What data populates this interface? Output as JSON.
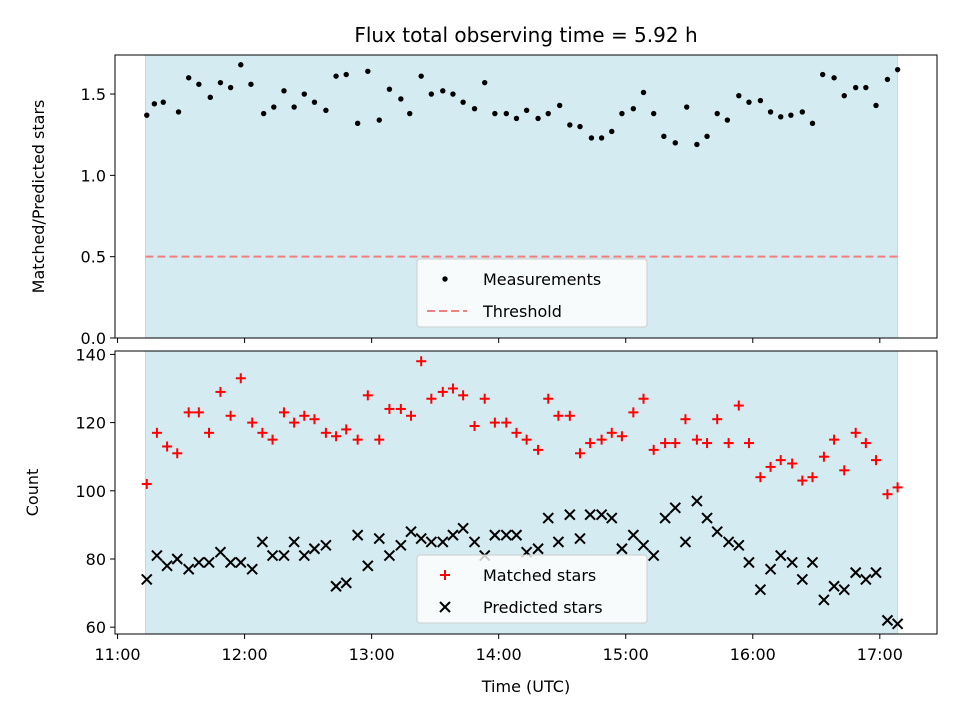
{
  "chart_data": {
    "title": "Flux total observing time = 5.92 h",
    "xlabel": "Time (UTC)",
    "x_tick_labels": [
      "11:00",
      "12:00",
      "13:00",
      "14:00",
      "15:00",
      "16:00",
      "17:00"
    ],
    "x_tick_hours": [
      11,
      12,
      13,
      14,
      15,
      16,
      17
    ],
    "xlim": [
      10.98,
      17.45
    ],
    "observing_span": [
      11.22,
      17.14
    ],
    "shade_color": "#d4ebf1",
    "panels": [
      {
        "type": "scatter",
        "ylabel": "Matched/Predicted stars",
        "ylim": [
          0,
          1.74
        ],
        "yticks": [
          0.0,
          0.5,
          1.0,
          1.5
        ],
        "ytick_labels": [
          "0.0",
          "0.5",
          "1.0",
          "1.5"
        ],
        "legend_position": "lower center",
        "series": [
          {
            "name": "Measurements",
            "color": "#000000",
            "marker": "dot",
            "x": [
              11.23,
              11.29,
              11.36,
              11.48,
              11.56,
              11.64,
              11.73,
              11.81,
              11.89,
              11.97,
              12.05,
              12.15,
              12.23,
              12.31,
              12.39,
              12.47,
              12.55,
              12.64,
              12.72,
              12.8,
              12.89,
              12.97,
              13.06,
              13.14,
              13.23,
              13.3,
              13.39,
              13.47,
              13.56,
              13.64,
              13.72,
              13.81,
              13.89,
              13.97,
              14.06,
              14.14,
              14.22,
              14.31,
              14.39,
              14.48,
              14.56,
              14.64,
              14.73,
              14.81,
              14.89,
              14.97,
              15.06,
              15.14,
              15.22,
              15.3,
              15.39,
              15.48,
              15.56,
              15.64,
              15.72,
              15.8,
              15.89,
              15.97,
              16.06,
              16.14,
              16.22,
              16.3,
              16.39,
              16.47,
              16.55,
              16.64,
              16.72,
              16.81,
              16.89,
              16.97,
              17.06,
              17.14
            ],
            "y": [
              1.37,
              1.44,
              1.45,
              1.39,
              1.6,
              1.56,
              1.48,
              1.57,
              1.54,
              1.68,
              1.56,
              1.38,
              1.42,
              1.52,
              1.42,
              1.5,
              1.45,
              1.4,
              1.61,
              1.62,
              1.32,
              1.64,
              1.34,
              1.53,
              1.47,
              1.38,
              1.61,
              1.5,
              1.52,
              1.5,
              1.45,
              1.41,
              1.57,
              1.38,
              1.38,
              1.35,
              1.4,
              1.35,
              1.38,
              1.43,
              1.31,
              1.3,
              1.23,
              1.23,
              1.27,
              1.38,
              1.41,
              1.51,
              1.38,
              1.24,
              1.2,
              1.42,
              1.19,
              1.24,
              1.38,
              1.34,
              1.49,
              1.45,
              1.46,
              1.39,
              1.36,
              1.37,
              1.39,
              1.32,
              1.62,
              1.6,
              1.49,
              1.54,
              1.54,
              1.43,
              1.59,
              1.65
            ]
          },
          {
            "name": "Threshold",
            "type": "hline",
            "y": 0.5,
            "color": "#f08080",
            "linestyle": "dashed"
          }
        ]
      },
      {
        "type": "scatter",
        "ylabel": "Count",
        "ylim": [
          58,
          141
        ],
        "yticks": [
          60,
          80,
          100,
          120,
          140
        ],
        "ytick_labels": [
          "60",
          "80",
          "100",
          "120",
          "140"
        ],
        "legend_position": "lower center",
        "series": [
          {
            "name": "Matched stars",
            "color": "#ff0000",
            "marker": "plus",
            "x": [
              11.23,
              11.31,
              11.39,
              11.47,
              11.56,
              11.64,
              11.72,
              11.81,
              11.89,
              11.97,
              12.06,
              12.14,
              12.22,
              12.31,
              12.39,
              12.47,
              12.55,
              12.64,
              12.72,
              12.8,
              12.89,
              12.97,
              13.06,
              13.14,
              13.23,
              13.31,
              13.39,
              13.47,
              13.56,
              13.64,
              13.72,
              13.81,
              13.89,
              13.97,
              14.06,
              14.14,
              14.22,
              14.31,
              14.39,
              14.47,
              14.56,
              14.64,
              14.72,
              14.81,
              14.89,
              14.97,
              15.06,
              15.14,
              15.22,
              15.31,
              15.39,
              15.47,
              15.56,
              15.64,
              15.72,
              15.81,
              15.89,
              15.97,
              16.06,
              16.14,
              16.22,
              16.31,
              16.39,
              16.47,
              16.56,
              16.64,
              16.72,
              16.81,
              16.89,
              16.97,
              17.06,
              17.14
            ],
            "y": [
              102,
              117,
              113,
              111,
              123,
              123,
              117,
              129,
              122,
              133,
              120,
              117,
              115,
              123,
              120,
              122,
              121,
              117,
              116,
              118,
              115,
              128,
              115,
              124,
              124,
              122,
              138,
              127,
              129,
              130,
              128,
              119,
              127,
              120,
              120,
              117,
              115,
              112,
              127,
              122,
              122,
              111,
              114,
              115,
              117,
              116,
              123,
              127,
              112,
              114,
              114,
              121,
              115,
              114,
              121,
              114,
              125,
              114,
              104,
              107,
              109,
              108,
              103,
              104,
              110,
              115,
              106,
              117,
              114,
              109,
              99,
              101
            ]
          },
          {
            "name": "Predicted stars",
            "color": "#000000",
            "marker": "x",
            "x": [
              11.23,
              11.31,
              11.39,
              11.47,
              11.56,
              11.64,
              11.72,
              11.81,
              11.89,
              11.97,
              12.06,
              12.14,
              12.22,
              12.31,
              12.39,
              12.47,
              12.55,
              12.64,
              12.72,
              12.8,
              12.89,
              12.97,
              13.06,
              13.14,
              13.23,
              13.31,
              13.39,
              13.47,
              13.56,
              13.64,
              13.72,
              13.81,
              13.89,
              13.97,
              14.06,
              14.14,
              14.22,
              14.31,
              14.39,
              14.47,
              14.56,
              14.64,
              14.72,
              14.81,
              14.89,
              14.97,
              15.06,
              15.14,
              15.22,
              15.31,
              15.39,
              15.47,
              15.56,
              15.64,
              15.72,
              15.81,
              15.89,
              15.97,
              16.06,
              16.14,
              16.22,
              16.31,
              16.39,
              16.47,
              16.56,
              16.64,
              16.72,
              16.81,
              16.89,
              16.97,
              17.06,
              17.14
            ],
            "y": [
              74,
              81,
              78,
              80,
              77,
              79,
              79,
              82,
              79,
              79,
              77,
              85,
              81,
              81,
              85,
              81,
              83,
              84,
              72,
              73,
              87,
              78,
              86,
              81,
              84,
              88,
              86,
              85,
              85,
              87,
              89,
              85,
              81,
              87,
              87,
              87,
              82,
              83,
              92,
              85,
              93,
              86,
              93,
              93,
              92,
              83,
              87,
              84,
              81,
              92,
              95,
              85,
              97,
              92,
              88,
              85,
              84,
              79,
              71,
              77,
              81,
              79,
              74,
              79,
              68,
              72,
              71,
              76,
              74,
              76,
              62,
              61
            ]
          }
        ]
      }
    ]
  }
}
